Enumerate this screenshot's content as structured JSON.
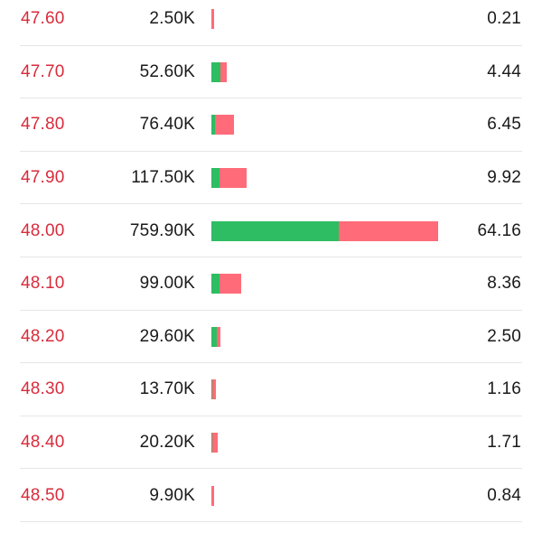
{
  "colors": {
    "price_text": "#d92b3c",
    "buy_bar": "#2ebd62",
    "sell_bar": "#ff6b78",
    "divider": "#e6e6e6"
  },
  "rows": [
    {
      "price": "47.60",
      "volume": "2.50K",
      "percent": "0.21",
      "buy_frac": 0.0,
      "sell_frac": 1.0
    },
    {
      "price": "47.70",
      "volume": "52.60K",
      "percent": "4.44",
      "buy_frac": 0.55,
      "sell_frac": 0.45
    },
    {
      "price": "47.80",
      "volume": "76.40K",
      "percent": "6.45",
      "buy_frac": 0.15,
      "sell_frac": 0.85
    },
    {
      "price": "47.90",
      "volume": "117.50K",
      "percent": "9.92",
      "buy_frac": 0.24,
      "sell_frac": 0.76
    },
    {
      "price": "48.00",
      "volume": "759.90K",
      "percent": "64.16",
      "buy_frac": 0.56,
      "sell_frac": 0.44
    },
    {
      "price": "48.10",
      "volume": "99.00K",
      "percent": "8.36",
      "buy_frac": 0.27,
      "sell_frac": 0.73
    },
    {
      "price": "48.20",
      "volume": "29.60K",
      "percent": "2.50",
      "buy_frac": 0.6,
      "sell_frac": 0.4
    },
    {
      "price": "48.30",
      "volume": "13.70K",
      "percent": "1.16",
      "buy_frac": 0.2,
      "sell_frac": 0.8
    },
    {
      "price": "48.40",
      "volume": "20.20K",
      "percent": "1.71",
      "buy_frac": 0.2,
      "sell_frac": 0.8
    },
    {
      "price": "48.50",
      "volume": "9.90K",
      "percent": "0.84",
      "buy_frac": 0.0,
      "sell_frac": 1.0
    }
  ]
}
